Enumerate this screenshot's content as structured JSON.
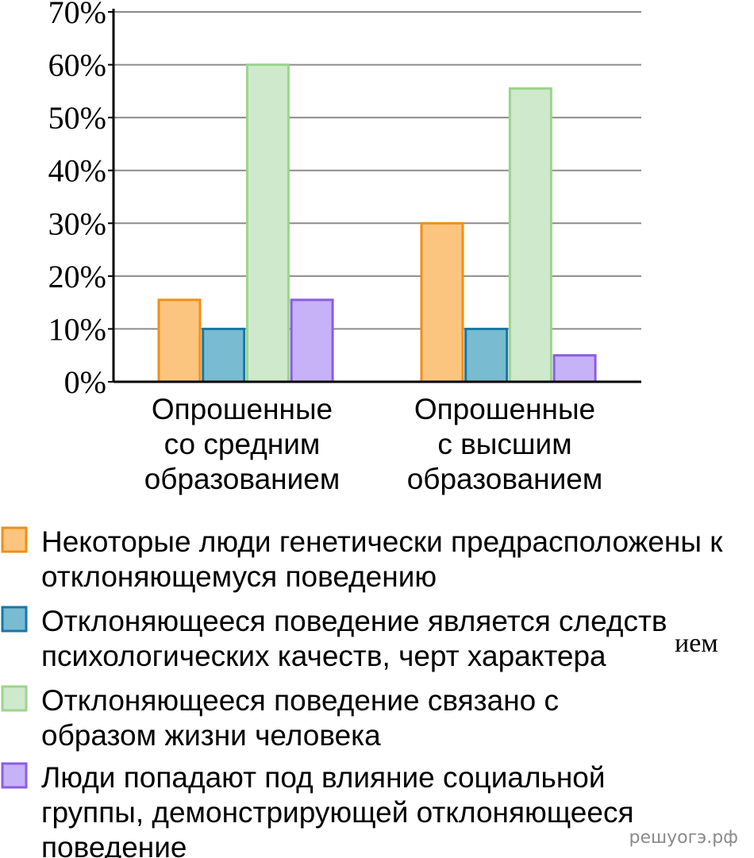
{
  "chart_data": {
    "type": "bar",
    "categories": [
      [
        "Опрошенные",
        "со средним",
        "образованием"
      ],
      [
        "Опрошенные",
        "с высшим",
        "образованием"
      ]
    ],
    "series": [
      {
        "name": [
          "Некоторые люди генетически предрасположены к",
          "отклоняющемуся поведению"
        ],
        "fill": "#fcc57f",
        "stroke": "#f08f17",
        "values": [
          15.5,
          30
        ]
      },
      {
        "name": [
          "Отклоняющееся поведение является следств",
          "психологических качеств, черт характера"
        ],
        "fill": "#79bbd1",
        "stroke": "#1777a6",
        "values": [
          10,
          10
        ]
      },
      {
        "name": [
          "Отклоняющееся поведение связано с",
          "образом жизни человека"
        ],
        "fill": "#cfe9cc",
        "stroke": "#9bd58d",
        "values": [
          60,
          55.5
        ]
      },
      {
        "name": [
          "Люди попадают под влияние социальной",
          "группы, демонстрирующей отклоняющееся",
          "поведение"
        ],
        "fill": "#c6b2f6",
        "stroke": "#8c5ce6",
        "values": [
          15.5,
          5
        ]
      }
    ],
    "ylim": [
      0,
      70
    ],
    "yticks": [
      "0%",
      "10%",
      "20%",
      "30%",
      "40%",
      "50%",
      "60%",
      "70%"
    ],
    "grid": true,
    "legend_position": "bottom",
    "legend_fragment": "ием"
  },
  "watermark": "решуогэ.рф"
}
